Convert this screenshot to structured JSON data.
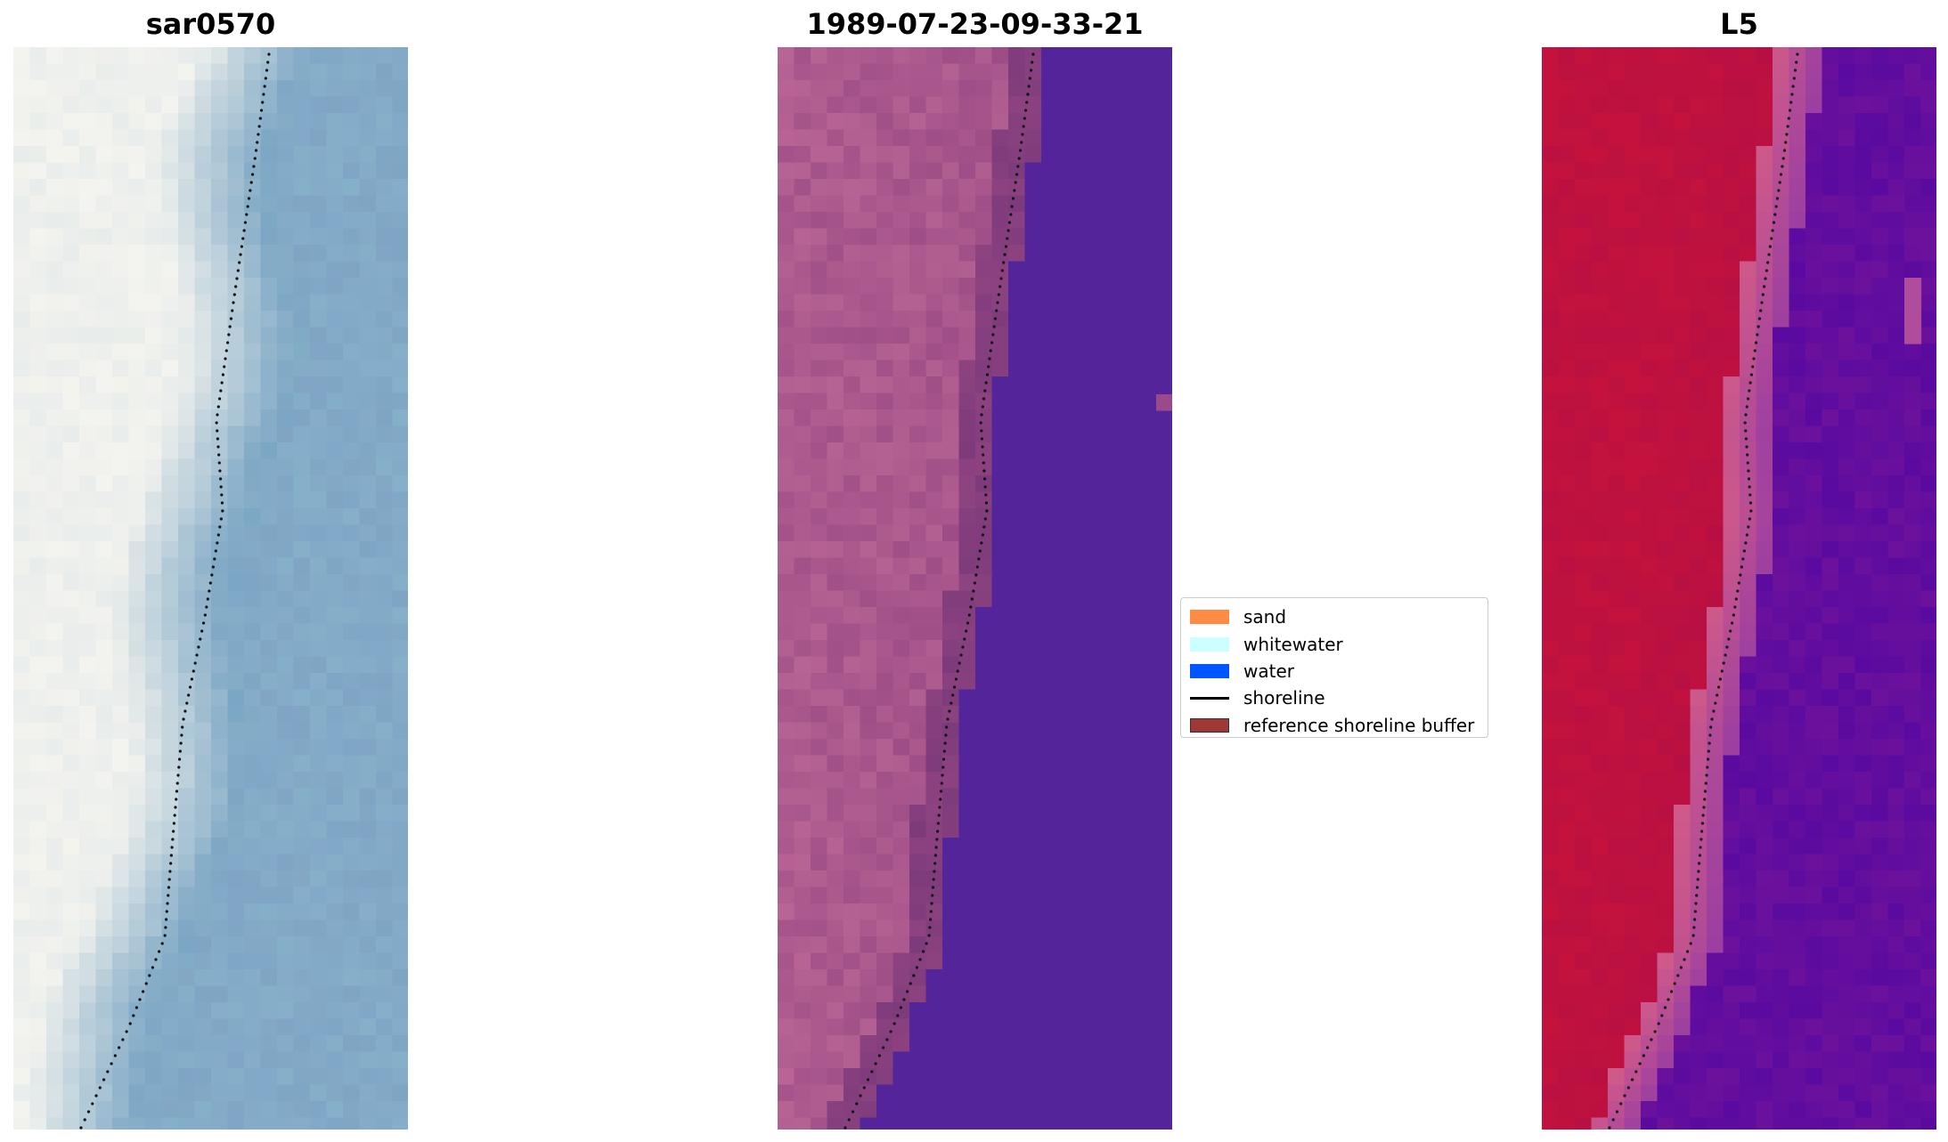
{
  "panels": [
    {
      "title": "sar0570",
      "kind": "rgb"
    },
    {
      "title": "1989-07-23-09-33-21",
      "kind": "classified"
    },
    {
      "title": "L5",
      "kind": "index"
    }
  ],
  "legend": {
    "items": [
      {
        "label": "sand",
        "color": "#ff8c42",
        "type": "patch"
      },
      {
        "label": "whitewater",
        "color": "#ccffff",
        "type": "patch"
      },
      {
        "label": "water",
        "color": "#0055ff",
        "type": "patch"
      },
      {
        "label": "shoreline",
        "color": "#000000",
        "type": "line"
      },
      {
        "label": "reference shoreline buffer",
        "color": "#a03838",
        "type": "patch",
        "edge": "#333333"
      }
    ]
  },
  "colors": {
    "rgb_water": "#7ba6c4",
    "rgb_sand": "#f4f4ef",
    "class_land": "#a54f8c",
    "class_water": "#53249a",
    "index_land": "#c2123a",
    "index_water": "#6a0f9c"
  }
}
